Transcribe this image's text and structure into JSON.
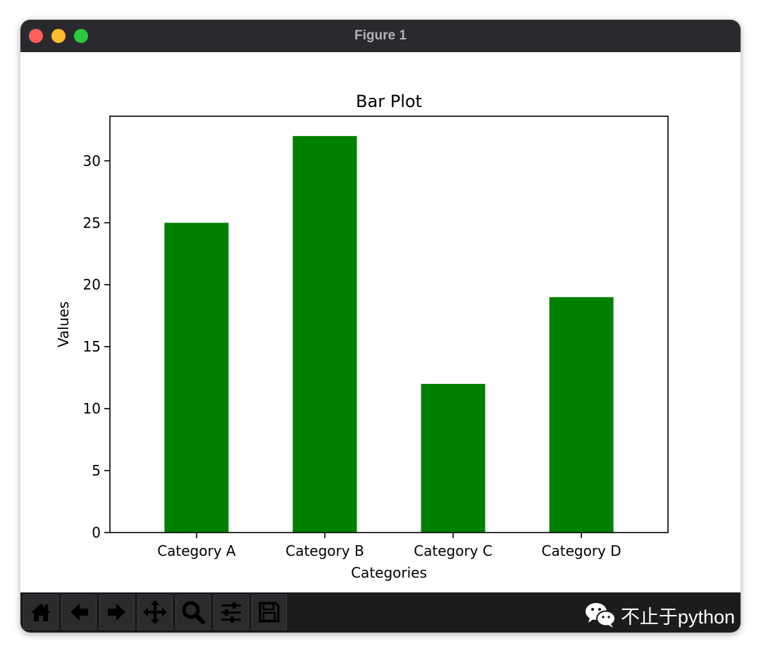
{
  "window": {
    "title": "Figure 1"
  },
  "chart_data": {
    "type": "bar",
    "title": "Bar Plot",
    "xlabel": "Categories",
    "ylabel": "Values",
    "categories": [
      "Category A",
      "Category B",
      "Category C",
      "Category D"
    ],
    "values": [
      25,
      32,
      12,
      19
    ],
    "ylim": [
      0,
      33.6
    ],
    "yticks": [
      0,
      5,
      10,
      15,
      20,
      25,
      30
    ],
    "bar_color": "#008000",
    "grid": false
  },
  "toolbar": {
    "tools": [
      "home-icon",
      "back-arrow-icon",
      "forward-arrow-icon",
      "pan-icon",
      "zoom-icon",
      "configure-subplots-icon",
      "save-icon"
    ]
  },
  "watermark": {
    "text": "不止于python"
  }
}
